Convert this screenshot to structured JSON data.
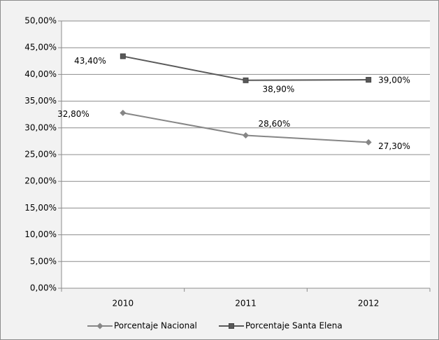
{
  "chart_data": {
    "type": "line",
    "categories": [
      "2010",
      "2011",
      "2012"
    ],
    "series": [
      {
        "name": "Porcentaje Nacional",
        "color": "#868686",
        "marker": "diamond",
        "values": [
          32.8,
          28.6,
          27.3
        ],
        "value_labels": [
          "32,80%",
          "28,60%",
          "27,30%"
        ]
      },
      {
        "name": "Porcentaje Santa Elena",
        "color": "#595959",
        "marker": "square",
        "values": [
          43.4,
          38.9,
          39.0
        ],
        "value_labels": [
          "43,40%",
          "38,90%",
          "39,00%"
        ]
      }
    ],
    "ylim": [
      0,
      50
    ],
    "yticks": [
      {
        "value": 0,
        "label": "0,00%"
      },
      {
        "value": 5,
        "label": "5,00%"
      },
      {
        "value": 10,
        "label": "10,00%"
      },
      {
        "value": 15,
        "label": "15,00%"
      },
      {
        "value": 20,
        "label": "20,00%"
      },
      {
        "value": 25,
        "label": "25,00%"
      },
      {
        "value": 30,
        "label": "30,00%"
      },
      {
        "value": 35,
        "label": "35,00%"
      },
      {
        "value": 40,
        "label": "40,00%"
      },
      {
        "value": 45,
        "label": "45,00%"
      },
      {
        "value": 50,
        "label": "50,00%"
      }
    ],
    "grid": true,
    "legend": "bottom"
  }
}
